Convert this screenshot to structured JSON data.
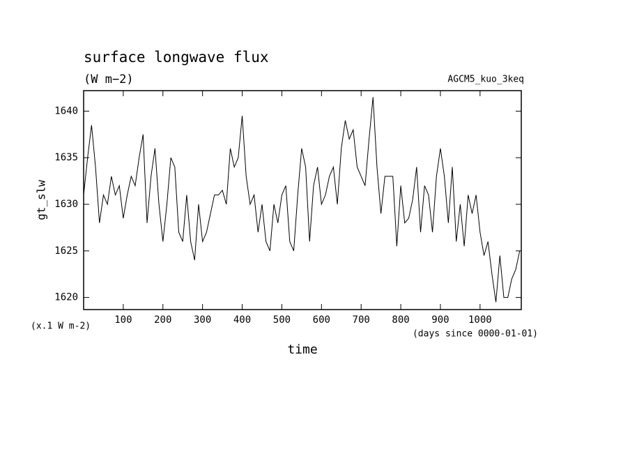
{
  "chart_data": {
    "type": "line",
    "title": "surface longwave flux",
    "subtitle": "(W m−2)",
    "annotation": "AGCM5_kuo_3keq",
    "y_label": "gt_slw",
    "y_unit_note": "(x.1 W m-2)",
    "x_unit_note": "(days since 0000-01-01)",
    "x_label": "time",
    "x": [
      0,
      10,
      20,
      30,
      40,
      50,
      60,
      70,
      80,
      90,
      100,
      110,
      120,
      130,
      140,
      150,
      160,
      170,
      180,
      190,
      200,
      210,
      220,
      230,
      240,
      250,
      260,
      270,
      280,
      290,
      300,
      310,
      320,
      330,
      340,
      350,
      360,
      370,
      380,
      390,
      400,
      410,
      420,
      430,
      440,
      450,
      460,
      470,
      480,
      490,
      500,
      510,
      520,
      530,
      540,
      550,
      560,
      570,
      580,
      590,
      600,
      610,
      620,
      630,
      640,
      650,
      660,
      670,
      680,
      690,
      700,
      710,
      720,
      730,
      740,
      750,
      760,
      770,
      780,
      790,
      800,
      810,
      820,
      830,
      840,
      850,
      860,
      870,
      880,
      890,
      900,
      910,
      920,
      930,
      940,
      950,
      960,
      970,
      980,
      990,
      1000,
      1010,
      1020,
      1030,
      1040,
      1050,
      1060,
      1070,
      1080,
      1090,
      1100
    ],
    "series": [
      {
        "name": "gt_slw",
        "color": "#000000",
        "values": [
          1631,
          1635,
          1638.5,
          1634,
          1628,
          1631,
          1630,
          1633,
          1631,
          1632,
          1628.5,
          1631,
          1633,
          1632,
          1635,
          1637.5,
          1628,
          1633,
          1636,
          1630,
          1626,
          1630,
          1635,
          1634,
          1627,
          1626,
          1631,
          1626,
          1624,
          1630,
          1626,
          1627,
          1629,
          1631,
          1631,
          1631.5,
          1630,
          1636,
          1634,
          1635,
          1639.5,
          1633,
          1630,
          1631,
          1627,
          1630,
          1626,
          1625,
          1630,
          1628,
          1631,
          1632,
          1626,
          1625,
          1631,
          1636,
          1634,
          1626,
          1632,
          1634,
          1630,
          1631,
          1633,
          1634,
          1630,
          1636,
          1639,
          1637,
          1638,
          1634,
          1633,
          1632,
          1637,
          1641.5,
          1634,
          1629,
          1633,
          1633,
          1633,
          1625.5,
          1632,
          1628,
          1628.5,
          1630.5,
          1634,
          1627,
          1632,
          1631,
          1627,
          1633,
          1636,
          1633,
          1628,
          1634,
          1626,
          1630,
          1625.5,
          1631,
          1629,
          1631,
          1627,
          1624.5,
          1626,
          1622.5,
          1619.5,
          1624.5,
          1620,
          1620,
          1622,
          1623,
          1625
        ]
      }
    ],
    "xlim": [
      0,
      1104
    ],
    "ylim": [
      1618.7,
      1642.2
    ],
    "xticks": [
      100,
      200,
      300,
      400,
      500,
      600,
      700,
      800,
      900,
      1000
    ],
    "yticks": [
      1620,
      1625,
      1630,
      1635,
      1640
    ]
  }
}
